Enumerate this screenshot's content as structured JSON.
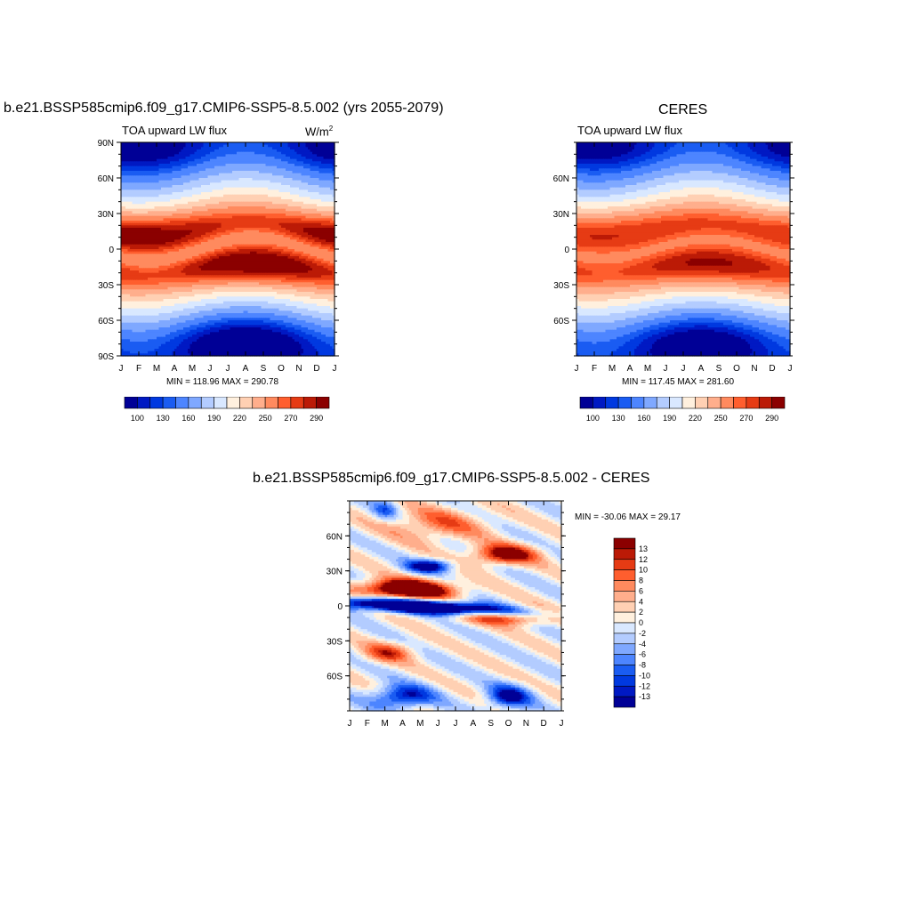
{
  "palette": {
    "fill_colors": [
      "#000096",
      "#0019c3",
      "#0039e0",
      "#1a5cf2",
      "#4d85ff",
      "#7fa8ff",
      "#b3ccff",
      "#d9e8ff",
      "#fff0de",
      "#ffd0b3",
      "#ffae8c",
      "#ff8a5e",
      "#ff5e2e",
      "#e63b14",
      "#bb1a06",
      "#8b0000"
    ]
  },
  "colorbar_model": {
    "labels": [
      "100",
      "130",
      "160",
      "190",
      "220",
      "250",
      "270",
      "290"
    ]
  },
  "colorbar_diff": {
    "labels": [
      "13",
      "12",
      "10",
      "8",
      "6",
      "4",
      "2",
      "0",
      "-2",
      "-4",
      "-6",
      "-8",
      "-10",
      "-12",
      "-13"
    ]
  },
  "chart_data": [
    {
      "type": "heatmap",
      "title": "b.e21.BSSP585cmip6.f09_g17.CMIP6-SSP5-8.5.002 (yrs 2055-2079)",
      "subtitle": "TOA upward LW flux",
      "units": "W/m",
      "units_sup": "2",
      "x_ticks": [
        "J",
        "F",
        "M",
        "A",
        "M",
        "J",
        "J",
        "A",
        "S",
        "O",
        "N",
        "D",
        "J"
      ],
      "y_ticks": [
        "90N",
        "60N",
        "30N",
        "0",
        "30S",
        "60S",
        "90S"
      ],
      "stats": "MIN = 118.96 MAX = 290.78",
      "min": 118.96,
      "max": 290.78
    },
    {
      "type": "heatmap",
      "title": "CERES",
      "subtitle": "TOA upward LW flux",
      "x_ticks": [
        "J",
        "F",
        "M",
        "A",
        "M",
        "J",
        "J",
        "A",
        "S",
        "O",
        "N",
        "D",
        "J"
      ],
      "y_ticks": [
        "60N",
        "30N",
        "0",
        "30S",
        "60S"
      ],
      "stats": "MIN = 117.45 MAX = 281.60",
      "min": 117.45,
      "max": 281.6
    },
    {
      "type": "heatmap",
      "title": "b.e21.BSSP585cmip6.f09_g17.CMIP6-SSP5-8.5.002 - CERES",
      "x_ticks": [
        "J",
        "F",
        "M",
        "A",
        "M",
        "J",
        "J",
        "A",
        "S",
        "O",
        "N",
        "D",
        "J"
      ],
      "y_ticks": [
        "60N",
        "30N",
        "0",
        "30S",
        "60S"
      ],
      "stats": "MIN = -30.06 MAX =  29.17",
      "min": -30.06,
      "max": 29.17
    }
  ]
}
